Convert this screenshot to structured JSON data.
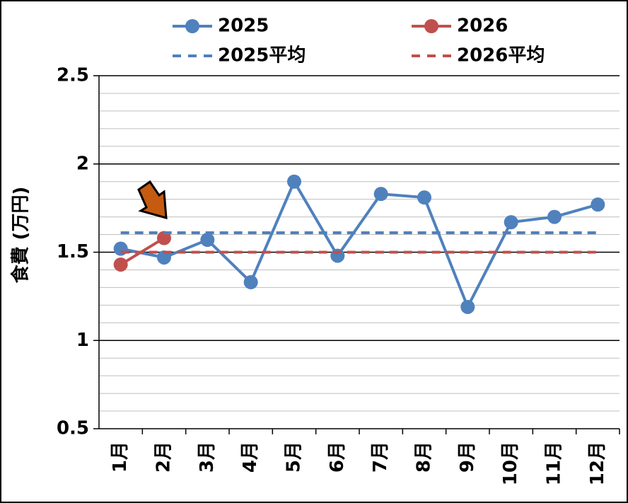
{
  "chart_data": {
    "type": "line",
    "y_label": "食費 (万円)",
    "categories": [
      "1月",
      "2月",
      "3月",
      "4月",
      "5月",
      "6月",
      "7月",
      "8月",
      "9月",
      "10月",
      "11月",
      "12月"
    ],
    "series": [
      {
        "name": "2025",
        "color": "#4f81bd",
        "marker": true,
        "values": [
          1.52,
          1.47,
          1.57,
          1.33,
          1.9,
          1.48,
          1.83,
          1.81,
          1.19,
          1.67,
          1.7,
          1.77
        ]
      },
      {
        "name": "2026",
        "color": "#c0504d",
        "marker": true,
        "values": [
          1.43,
          1.58,
          null,
          null,
          null,
          null,
          null,
          null,
          null,
          null,
          null,
          null
        ]
      },
      {
        "name": "2025平均",
        "color": "#4f81bd",
        "dashed": true,
        "values": [
          1.61,
          1.61,
          1.61,
          1.61,
          1.61,
          1.61,
          1.61,
          1.61,
          1.61,
          1.61,
          1.61,
          1.61
        ]
      },
      {
        "name": "2026平均",
        "color": "#c0504d",
        "dashed": true,
        "values": [
          1.5,
          1.5,
          1.5,
          1.5,
          1.5,
          1.5,
          1.5,
          1.5,
          1.5,
          1.5,
          1.5,
          1.5
        ]
      }
    ],
    "ylim": [
      0.5,
      2.5
    ],
    "yticks": [
      0.5,
      1,
      1.5,
      2,
      2.5
    ],
    "yticks_minor": [
      0.6,
      0.7,
      0.8,
      0.9,
      1.1,
      1.2,
      1.3,
      1.4,
      1.6,
      1.7,
      1.8,
      1.9,
      2.1,
      2.2,
      2.3,
      2.4
    ],
    "grid": true,
    "legend": "top"
  }
}
